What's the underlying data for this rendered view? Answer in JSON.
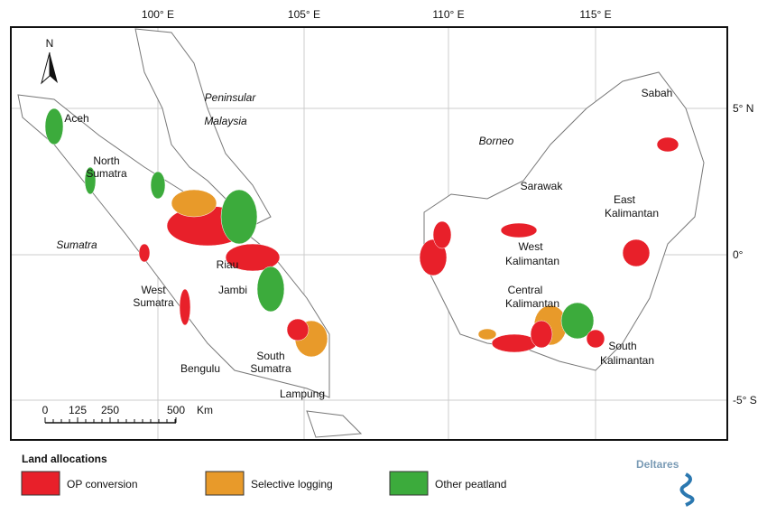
{
  "map": {
    "graticule": {
      "lon": [
        "100° E",
        "105° E",
        "110° E",
        "115° E"
      ],
      "lat": [
        "5° N",
        "0°",
        "-5° S"
      ]
    },
    "north": "N",
    "regions": [
      "Peninsular",
      "Malaysia",
      "Borneo",
      "Sumatra",
      "Aceh",
      "North",
      "Sumatra",
      "Riau",
      "Jambi",
      "West",
      "Sumatra",
      "South",
      "Sumatra",
      "Bengulu",
      "Lampung",
      "Sabah",
      "Sarawak",
      "East",
      "Kalimantan",
      "West",
      "Kalimantan",
      "Central",
      "Kalimantan",
      "South",
      "Kalimantan"
    ],
    "scale_bar": {
      "ticks": [
        "0",
        "125",
        "250",
        "500"
      ],
      "unit": "Km"
    },
    "legend": {
      "title": "Land allocations",
      "items": [
        {
          "label": "OP conversion",
          "color": "#e8202a"
        },
        {
          "label": "Selective logging",
          "color": "#e89a2a"
        },
        {
          "label": "Other peatland",
          "color": "#3cab3c"
        }
      ]
    },
    "logo": "Deltares"
  }
}
